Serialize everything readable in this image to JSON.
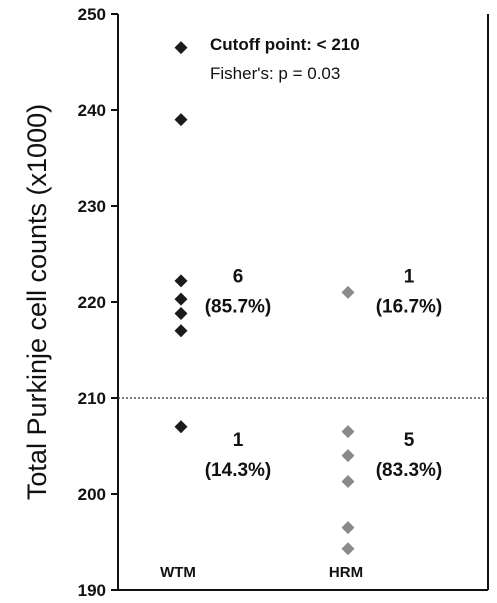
{
  "chart_data": {
    "type": "scatter",
    "ylabel": "Total Purkinje cell counts (x1000)",
    "ylim": [
      190,
      250
    ],
    "yticks": [
      190,
      200,
      210,
      220,
      230,
      240,
      250
    ],
    "categories": [
      "WTM",
      "HRM"
    ],
    "series": [
      {
        "name": "WTM",
        "color": "#1a1a1a",
        "values": [
          246.5,
          239,
          222.2,
          220.3,
          218.8,
          217,
          207
        ]
      },
      {
        "name": "HRM",
        "color": "#8a8a8a",
        "values": [
          221,
          206.5,
          204,
          201.3,
          196.5,
          194.3
        ]
      }
    ],
    "reference_line": {
      "y": 210,
      "style": "dotted"
    },
    "annotations": {
      "cutoff": "Cutoff point: < 210",
      "fisher": "Fisher's: p = 0.03"
    },
    "group_counts": [
      {
        "category": "WTM",
        "region": "above",
        "count": "6",
        "percent": "(85.7%)",
        "y": 221.5
      },
      {
        "category": "WTM",
        "region": "below",
        "count": "1",
        "percent": "(14.3%)",
        "y": 204.5
      },
      {
        "category": "HRM",
        "region": "above",
        "count": "1",
        "percent": "(16.7%)",
        "y": 221.5
      },
      {
        "category": "HRM",
        "region": "below",
        "count": "5",
        "percent": "(83.3%)",
        "y": 204.5
      }
    ]
  }
}
